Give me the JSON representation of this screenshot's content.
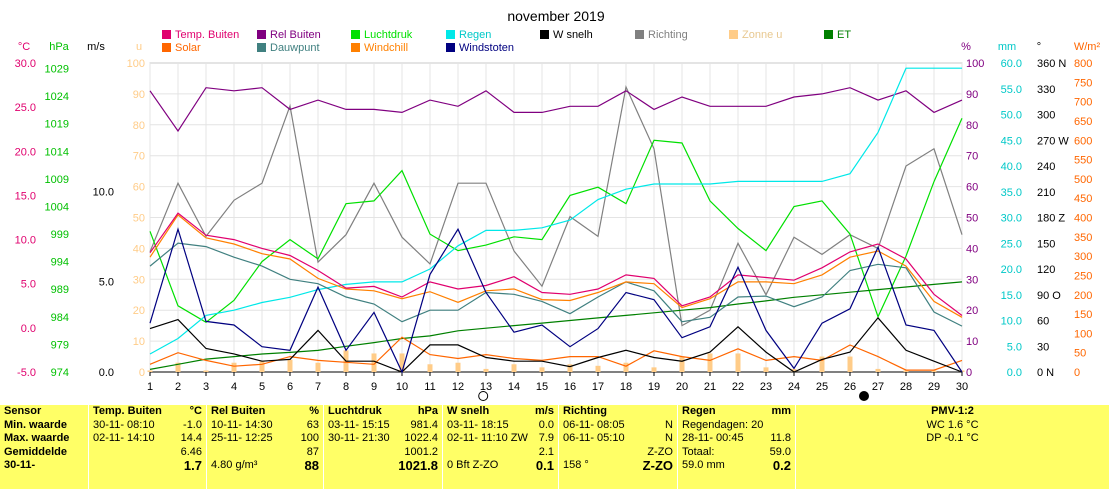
{
  "title": "november 2019",
  "legend": [
    {
      "label": "Temp. Buiten",
      "color": "#e0006e"
    },
    {
      "label": "Rel Buiten",
      "color": "#800080"
    },
    {
      "label": "Luchtdruk",
      "color": "#00e000"
    },
    {
      "label": "Regen",
      "color": "#00e8e8"
    },
    {
      "label": "W snelh",
      "color": "#000000"
    },
    {
      "label": "Richting",
      "color": "#808080"
    },
    {
      "label": "Zonne u",
      "color": "#ffcc88"
    },
    {
      "label": "ET",
      "color": "#008000"
    },
    {
      "label": "Solar",
      "color": "#ff6600"
    },
    {
      "label": "Dauwpunt",
      "color": "#408080"
    },
    {
      "label": "Windchill",
      "color": "#ff8000"
    },
    {
      "label": "Windstoten",
      "color": "#000080"
    }
  ],
  "axes": {
    "temp": {
      "unit": "°C",
      "ticks": [
        "30.0",
        "25.0",
        "20.0",
        "15.0",
        "10.0",
        "5.0",
        "0.0",
        "-5.0"
      ],
      "color": "#e0006e"
    },
    "press": {
      "unit": "hPa",
      "ticks": [
        "1029",
        "1024",
        "1019",
        "1014",
        "1009",
        "1004",
        "999",
        "994",
        "989",
        "984",
        "979",
        "974"
      ],
      "color": "#00c000"
    },
    "wind": {
      "unit": "m/s",
      "ticks": [
        "10.0",
        "5.0",
        "0.0"
      ]
    },
    "sun": {
      "unit": "u",
      "ticks": [
        "100",
        "90",
        "80",
        "70",
        "60",
        "50",
        "40",
        "30",
        "20",
        "10",
        "0"
      ],
      "color": "#ffcc88"
    },
    "hum": {
      "unit": "%",
      "ticks": [
        "100",
        "90",
        "80",
        "70",
        "60",
        "50",
        "40",
        "30",
        "20",
        "10",
        "0"
      ],
      "color": "#800080"
    },
    "rain": {
      "unit": "mm",
      "ticks": [
        "60.0",
        "55.0",
        "50.0",
        "45.0",
        "40.0",
        "35.0",
        "30.0",
        "25.0",
        "20.0",
        "15.0",
        "10.0",
        "5.0",
        "0.0"
      ],
      "color": "#00c8c8"
    },
    "dir": {
      "unit": "°",
      "ticks": [
        "360 N",
        "330",
        "300",
        "270 W",
        "240",
        "210",
        "180 Z",
        "150",
        "120",
        "90 O",
        "60",
        "30",
        "0 N"
      ]
    },
    "solar": {
      "unit": "W/m²",
      "ticks": [
        "800",
        "750",
        "700",
        "650",
        "600",
        "550",
        "500",
        "450",
        "400",
        "350",
        "300",
        "250",
        "200",
        "150",
        "100",
        "50",
        "0"
      ],
      "color": "#ff6600"
    },
    "x_ticks": [
      "1",
      "2",
      "3",
      "4",
      "5",
      "6",
      "7",
      "8",
      "9",
      "10",
      "11",
      "12",
      "13",
      "14",
      "15",
      "16",
      "17",
      "18",
      "19",
      "20",
      "21",
      "22",
      "23",
      "24",
      "25",
      "26",
      "27",
      "28",
      "29",
      "30"
    ]
  },
  "chart_data": {
    "type": "line",
    "title": "november 2019",
    "x": [
      1,
      2,
      3,
      4,
      5,
      6,
      7,
      8,
      9,
      10,
      11,
      12,
      13,
      14,
      15,
      16,
      17,
      18,
      19,
      20,
      21,
      22,
      23,
      24,
      25,
      26,
      27,
      28,
      29,
      30
    ],
    "series": [
      {
        "name": "Rel Buiten",
        "axis": "hum",
        "values": [
          91,
          78,
          92,
          91,
          92,
          85,
          88,
          85,
          85,
          84,
          88,
          86,
          91,
          84,
          84,
          86,
          86,
          91,
          85,
          89,
          86,
          86,
          86,
          89,
          90,
          92,
          88,
          91,
          84,
          88
        ]
      },
      {
        "name": "Luchtdruk",
        "axis": "press",
        "values": [
          999.5,
          986,
          983,
          987,
          994,
          998,
          994.5,
          1004.5,
          1005,
          1010.5,
          999,
          996,
          997,
          998.5,
          998,
          1006,
          1007.5,
          1004.5,
          1016,
          1015.5,
          1005,
          1000,
          996,
          1004,
          1005,
          999,
          984,
          995,
          1008.5,
          1020
        ]
      },
      {
        "name": "Regen",
        "axis": "rain",
        "values": [
          3.5,
          6.5,
          11,
          12,
          13.5,
          14.5,
          16,
          17,
          17.5,
          17.5,
          20,
          24.5,
          27.5,
          27.5,
          28,
          29.5,
          33.5,
          35.5,
          36.5,
          36.5,
          36.5,
          37,
          37,
          37,
          37,
          38.5,
          46.5,
          59,
          59,
          59
        ]
      },
      {
        "name": "Richting",
        "axis": "dir",
        "values": [
          140,
          220,
          158,
          200,
          220,
          310,
          128,
          160,
          220,
          157,
          126,
          220,
          220,
          141,
          100,
          181,
          158,
          332,
          260,
          54,
          72,
          150,
          90,
          157,
          137,
          160,
          144,
          240,
          260,
          160
        ]
      },
      {
        "name": "Temp. Buiten",
        "axis": "temp",
        "values": [
          8.5,
          13,
          10.5,
          10,
          9,
          8.2,
          6.5,
          4.5,
          4.7,
          3.5,
          5.2,
          4.4,
          4.8,
          5.8,
          4,
          3.8,
          4.4,
          6,
          5.6,
          2.5,
          3.5,
          6,
          5.7,
          5.4,
          6.8,
          8.6,
          9.5,
          7.8,
          3.8,
          1.4
        ]
      },
      {
        "name": "Dauwpunt",
        "axis": "temp",
        "values": [
          7,
          9.6,
          9.2,
          8,
          7,
          5.5,
          5,
          3.5,
          2.7,
          0.7,
          2,
          2,
          4,
          3.8,
          3,
          1.6,
          3.5,
          5.2,
          4.2,
          0.7,
          1.2,
          3.5,
          3.6,
          2.4,
          3.5,
          6.5,
          7.2,
          6.8,
          1.8,
          0.2
        ]
      },
      {
        "name": "Windchill",
        "axis": "temp",
        "values": [
          8,
          12.8,
          10.2,
          9.5,
          8.4,
          7.8,
          5.6,
          4.4,
          4.2,
          3.3,
          4.1,
          2.9,
          4.2,
          4.4,
          3.2,
          3.1,
          4,
          5.2,
          5,
          2.3,
          3.3,
          5.2,
          5.2,
          5,
          6,
          8,
          8.7,
          7,
          3,
          1.2
        ]
      },
      {
        "name": "W snelh",
        "axis": "wind",
        "values": [
          2.4,
          2.9,
          1.3,
          1,
          0.6,
          0.7,
          2.3,
          0.6,
          0.6,
          0,
          1.5,
          1.5,
          0.8,
          0.6,
          0.6,
          0.3,
          0.8,
          1.2,
          0.8,
          0.6,
          1.1,
          2.5,
          1.1,
          0,
          0.7,
          1.1,
          3,
          1.2,
          0.6,
          0
        ]
      },
      {
        "name": "Windstoten",
        "axis": "wind",
        "values": [
          2.7,
          7.9,
          2.8,
          2.6,
          1.4,
          1.2,
          4.7,
          1.2,
          3.3,
          0,
          5.4,
          7.9,
          4.4,
          2.2,
          2.6,
          1.4,
          2.4,
          4.4,
          4,
          1.9,
          2.5,
          5.8,
          2.3,
          0.2,
          2.7,
          3.5,
          6.9,
          2.6,
          2.3,
          0
        ]
      },
      {
        "name": "ET",
        "axis": "rain",
        "values": [
          0.5,
          1.5,
          2.5,
          3,
          3.5,
          3.8,
          4.2,
          5,
          5.7,
          6.5,
          7,
          8,
          8.5,
          9,
          9.5,
          10,
          10.5,
          11,
          11.5,
          12,
          12.5,
          13.2,
          13.8,
          14.5,
          15,
          15.5,
          16,
          16.5,
          17,
          17.5
        ]
      },
      {
        "name": "Solar",
        "axis": "solar",
        "values": [
          20,
          50,
          30,
          15,
          20,
          40,
          30,
          25,
          20,
          90,
          45,
          35,
          45,
          35,
          30,
          40,
          40,
          15,
          55,
          40,
          30,
          60,
          30,
          40,
          30,
          70,
          40,
          5,
          5,
          30
        ]
      },
      {
        "name": "Zonne u",
        "axis": "sun",
        "values": [
          0,
          0,
          0,
          0,
          3,
          0,
          3,
          7,
          6,
          6,
          0,
          0,
          0,
          0,
          0,
          0,
          0,
          0,
          0,
          0,
          0,
          6,
          0,
          0,
          0,
          0,
          0,
          0,
          0,
          0
        ]
      }
    ],
    "sun_bars": [
      0.5,
      3,
      0.5,
      3,
      3.5,
      4,
      3,
      7,
      6,
      6,
      2.5,
      3,
      1,
      2.5,
      1.5,
      2.5,
      2,
      3,
      1.5,
      5,
      6,
      6,
      1.5,
      1,
      5,
      5,
      1,
      0.5,
      0.5,
      0.5
    ],
    "moon": [
      {
        "day": 12.9,
        "phase": "full"
      },
      {
        "day": 26.5,
        "phase": "new"
      }
    ]
  },
  "table": {
    "row_labels": [
      "Sensor",
      "Min. waarde",
      "Max. waarde",
      "Gemiddelde",
      "30-11-"
    ],
    "temp": {
      "head": "Temp. Buiten",
      "unit": "°C",
      "min_t": "30-11-  08:10",
      "min_v": "-1.0",
      "max_t": "02-11-  14:10",
      "max_v": "14.4",
      "avg": "6.46",
      "cur": "1.7"
    },
    "hum": {
      "head": "Rel Buiten",
      "unit": "%",
      "min_t": "10-11-  14:30",
      "min_v": "63",
      "max_t": "25-11-  12:25",
      "max_v": "100",
      "avg": "87",
      "cur_l": "4.80 g/m³",
      "cur": "88"
    },
    "press": {
      "head": "Luchtdruk",
      "unit": "hPa",
      "min_t": "03-11-  15:15",
      "min_v": "981.4",
      "max_t": "30-11-  21:30",
      "max_v": "1022.4",
      "avg": "1001.2",
      "cur": "1021.8"
    },
    "wind": {
      "head": "W snelh",
      "unit": "m/s",
      "min_t": "03-11-  18:15",
      "min_v": "0.0",
      "max_t": "02-11-  11:10 ZW",
      "max_v": "7.9",
      "avg": "2.1",
      "cur_l": "0 Bft Z-ZO",
      "cur": "0.1"
    },
    "dir": {
      "head": "Richting",
      "min_t": "06-11-  08:05",
      "min_v": "N",
      "max_t": "06-11-  05:10",
      "max_v": "N",
      "avg": "Z-ZO",
      "cur_l": "158 °",
      "cur": "Z-ZO"
    },
    "rain": {
      "head": "Regen",
      "unit": "mm",
      "days": "Regendagen: 20",
      "max_t": "28-11-  00:45",
      "max_v": "11.8",
      "tot_l": "Totaal:",
      "tot_v": "59.0",
      "cur_l": "59.0 mm",
      "cur": "0.2"
    },
    "pmv": {
      "head": "PMV-1:2",
      "wc": "WC 1.6 °C",
      "dp": "DP -0.1 °C"
    }
  }
}
